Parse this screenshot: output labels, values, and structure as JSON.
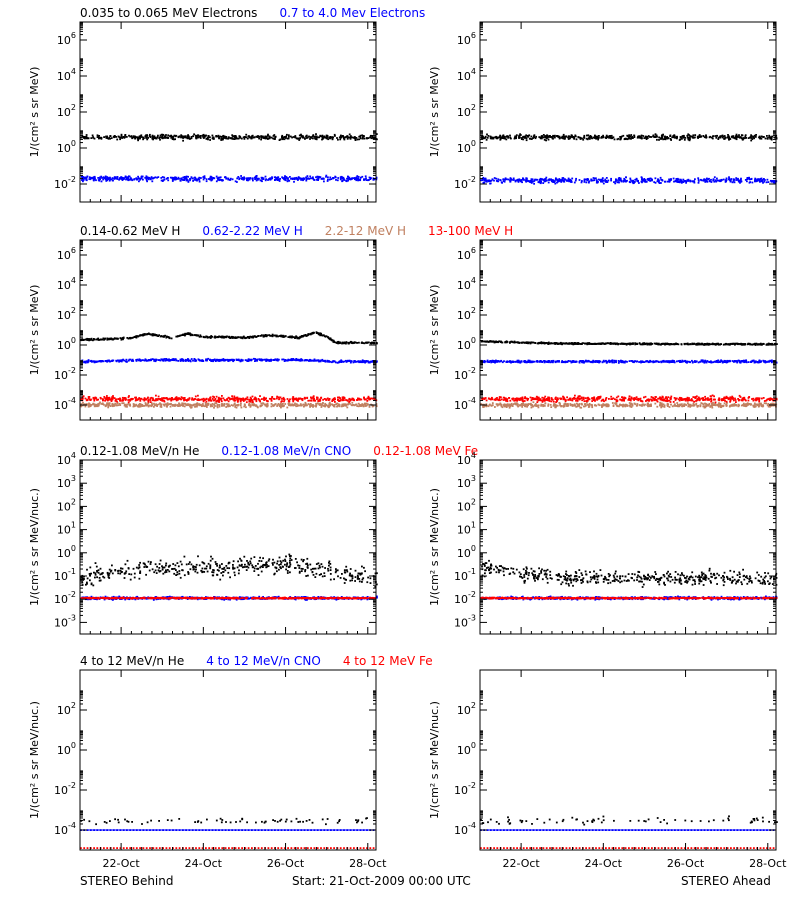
{
  "footer": {
    "left": "STEREO Behind",
    "center": "Start: 21-Oct-2009 00:00 UTC",
    "right": "STEREO Ahead"
  },
  "x_axis": {
    "range_days": [
      21.0,
      28.2
    ],
    "ticks": [
      22,
      24,
      26,
      28
    ],
    "tick_labels": [
      "22-Oct",
      "24-Oct",
      "26-Oct",
      "28-Oct"
    ]
  },
  "colors": {
    "black": "#000000",
    "blue": "#0000ff",
    "tan": "#c08060",
    "red": "#ff0000"
  },
  "rows": [
    {
      "id": "electrons",
      "legend": [
        {
          "text": "0.035 to 0.065 MeV Electrons",
          "color": "#000000"
        },
        {
          "text": "0.7 to 4.0 Mev Electrons",
          "color": "#0000ff"
        }
      ],
      "ylabel": "1/(cm² s sr MeV)",
      "log_range": [
        -3,
        7
      ],
      "ticks": [
        {
          "exp": -2,
          "text": "10",
          "sup": "-2"
        },
        {
          "exp": 0,
          "text": "10",
          "sup": "0"
        },
        {
          "exp": 2,
          "text": "10",
          "sup": "2"
        },
        {
          "exp": 4,
          "text": "10",
          "sup": "4"
        },
        {
          "exp": 6,
          "text": "10",
          "sup": "6"
        }
      ]
    },
    {
      "id": "protons",
      "legend": [
        {
          "text": "0.14-0.62 MeV H",
          "color": "#000000"
        },
        {
          "text": "0.62-2.22 MeV H",
          "color": "#0000ff"
        },
        {
          "text": "2.2-12 MeV H",
          "color": "#c08060"
        },
        {
          "text": "13-100 MeV H",
          "color": "#ff0000"
        }
      ],
      "ylabel": "1/(cm² s sr MeV)",
      "log_range": [
        -5,
        7
      ],
      "ticks": [
        {
          "exp": -4,
          "text": "10",
          "sup": "-4"
        },
        {
          "exp": -2,
          "text": "10",
          "sup": "-2"
        },
        {
          "exp": 0,
          "text": "10",
          "sup": "0"
        },
        {
          "exp": 2,
          "text": "10",
          "sup": "2"
        },
        {
          "exp": 4,
          "text": "10",
          "sup": "4"
        },
        {
          "exp": 6,
          "text": "10",
          "sup": "6"
        }
      ]
    },
    {
      "id": "ions_low",
      "legend": [
        {
          "text": "0.12-1.08 MeV/n He",
          "color": "#000000"
        },
        {
          "text": "0.12-1.08 MeV/n CNO",
          "color": "#0000ff"
        },
        {
          "text": "0.12-1.08 MeV Fe",
          "color": "#ff0000"
        }
      ],
      "ylabel": "1/(cm² s sr MeV/nuc.)",
      "log_range": [
        -3.5,
        4
      ],
      "ticks": [
        {
          "exp": -3,
          "text": "10",
          "sup": "-3"
        },
        {
          "exp": -2,
          "text": "10",
          "sup": "-2"
        },
        {
          "exp": -1,
          "text": "10",
          "sup": "-1"
        },
        {
          "exp": 0,
          "text": "10",
          "sup": "0"
        },
        {
          "exp": 1,
          "text": "10",
          "sup": "1"
        },
        {
          "exp": 2,
          "text": "10",
          "sup": "2"
        },
        {
          "exp": 3,
          "text": "10",
          "sup": "3"
        },
        {
          "exp": 4,
          "text": "10",
          "sup": "4"
        }
      ]
    },
    {
      "id": "ions_high",
      "legend": [
        {
          "text": "4 to 12 MeV/n He",
          "color": "#000000"
        },
        {
          "text": "4 to 12 MeV/n CNO",
          "color": "#0000ff"
        },
        {
          "text": "4 to 12 MeV Fe",
          "color": "#ff0000"
        }
      ],
      "ylabel": "1/(cm² s sr MeV/nuc.)",
      "log_range": [
        -5,
        4
      ],
      "ticks": [
        {
          "exp": -4,
          "text": "10",
          "sup": "-4"
        },
        {
          "exp": -2,
          "text": "10",
          "sup": "-2"
        },
        {
          "exp": 0,
          "text": "10",
          "sup": "0"
        },
        {
          "exp": 2,
          "text": "10",
          "sup": "2"
        }
      ]
    }
  ],
  "chart_data": [
    {
      "type": "scatter",
      "panel": "STEREO Behind - electrons",
      "y_scale": "log",
      "series": [
        {
          "name": "0.035 to 0.065 MeV Electrons",
          "color": "#000000",
          "base_log": 0.6,
          "noise": 0.12,
          "bumps": []
        },
        {
          "name": "0.7 to 4.0 Mev Electrons",
          "color": "#0000ff",
          "base_log": -1.7,
          "noise": 0.12,
          "bumps": []
        }
      ]
    },
    {
      "type": "scatter",
      "panel": "STEREO Ahead - electrons",
      "y_scale": "log",
      "series": [
        {
          "name": "0.035 to 0.065 MeV Electrons",
          "color": "#000000",
          "base_log": 0.6,
          "noise": 0.12,
          "bumps": []
        },
        {
          "name": "0.7 to 4.0 Mev Electrons",
          "color": "#0000ff",
          "base_log": -1.8,
          "noise": 0.12,
          "bumps": []
        }
      ]
    },
    {
      "type": "scatter",
      "panel": "STEREO Behind - protons",
      "y_scale": "log",
      "series": [
        {
          "name": "0.14-0.62 MeV H",
          "color": "#000000",
          "base_log": 0.15,
          "noise": 0.05,
          "bumps": [
            [
              21.0,
              0.2
            ],
            [
              22.2,
              0.3
            ],
            [
              22.6,
              0.6
            ],
            [
              23.2,
              0.35
            ],
            [
              23.6,
              0.6
            ],
            [
              24.0,
              0.4
            ],
            [
              25.0,
              0.35
            ],
            [
              25.6,
              0.5
            ],
            [
              26.3,
              0.35
            ],
            [
              26.7,
              0.7
            ],
            [
              27.0,
              0.4
            ],
            [
              27.2,
              0.0
            ],
            [
              28.2,
              0.0
            ]
          ]
        },
        {
          "name": "0.62-2.22 MeV H",
          "color": "#0000ff",
          "base_log": -1.1,
          "noise": 0.06,
          "bumps": [
            [
              21.0,
              0.0
            ],
            [
              22.5,
              0.1
            ],
            [
              24.0,
              0.1
            ],
            [
              26.5,
              0.1
            ],
            [
              27.2,
              0.0
            ],
            [
              28.2,
              0.0
            ]
          ]
        },
        {
          "name": "2.2-12 MeV H",
          "color": "#c08060",
          "base_log": -4.0,
          "noise": 0.12,
          "bumps": []
        },
        {
          "name": "13-100 MeV H",
          "color": "#ff0000",
          "base_log": -3.6,
          "noise": 0.15,
          "bumps": []
        }
      ]
    },
    {
      "type": "scatter",
      "panel": "STEREO Ahead - protons",
      "y_scale": "log",
      "series": [
        {
          "name": "0.14-0.62 MeV H",
          "color": "#000000",
          "base_log": 0.1,
          "noise": 0.04,
          "bumps": [
            [
              21.0,
              0.15
            ],
            [
              23.0,
              0.0
            ],
            [
              28.2,
              -0.05
            ]
          ]
        },
        {
          "name": "0.62-2.22 MeV H",
          "color": "#0000ff",
          "base_log": -1.1,
          "noise": 0.06,
          "bumps": []
        },
        {
          "name": "2.2-12 MeV H",
          "color": "#c08060",
          "base_log": -4.0,
          "noise": 0.12,
          "bumps": []
        },
        {
          "name": "13-100 MeV H",
          "color": "#ff0000",
          "base_log": -3.6,
          "noise": 0.15,
          "bumps": []
        }
      ]
    },
    {
      "type": "scatter",
      "panel": "STEREO Behind - 0.12-1.08 MeV/n ions",
      "y_scale": "log",
      "series": [
        {
          "name": "0.12-1.08 MeV/n He",
          "color": "#000000",
          "base_log": -1.0,
          "noise": 0.35,
          "bumps": [
            [
              21.0,
              0.0
            ],
            [
              22.5,
              0.3
            ],
            [
              24.0,
              0.4
            ],
            [
              26.0,
              0.5
            ],
            [
              27.0,
              0.3
            ],
            [
              27.4,
              0.0
            ],
            [
              28.2,
              0.0
            ]
          ]
        },
        {
          "name": "0.12-1.08 MeV/n CNO",
          "color": "#0000ff",
          "base_log": -1.95,
          "noise": 0.05,
          "bumps": []
        },
        {
          "name": "0.12-1.08 MeV Fe",
          "color": "#ff0000",
          "base_log": -1.95,
          "noise": 0.02,
          "bumps": []
        }
      ]
    },
    {
      "type": "scatter",
      "panel": "STEREO Ahead - 0.12-1.08 MeV/n ions",
      "y_scale": "log",
      "series": [
        {
          "name": "0.12-1.08 MeV/n He",
          "color": "#000000",
          "base_log": -1.1,
          "noise": 0.25,
          "bumps": [
            [
              21.0,
              0.5
            ],
            [
              22.0,
              0.2
            ],
            [
              23.0,
              0.0
            ],
            [
              28.2,
              0.0
            ]
          ]
        },
        {
          "name": "0.12-1.08 MeV/n CNO",
          "color": "#0000ff",
          "base_log": -1.95,
          "noise": 0.05,
          "bumps": []
        },
        {
          "name": "0.12-1.08 MeV Fe",
          "color": "#ff0000",
          "base_log": -1.95,
          "noise": 0.02,
          "bumps": []
        }
      ]
    },
    {
      "type": "scatter",
      "panel": "STEREO Behind - 4 to 12 MeV/n ions",
      "y_scale": "log",
      "series": [
        {
          "name": "4 to 12 MeV/n He",
          "color": "#000000",
          "base_log": -3.55,
          "noise": 0.15,
          "bumps": []
        },
        {
          "name": "4 to 12 MeV/n CNO",
          "color": "#0000ff",
          "base_log": -4.0,
          "noise": 0.0,
          "bumps": []
        },
        {
          "name": "4 to 12 MeV Fe",
          "color": "#ff0000",
          "base_log": -4.9,
          "noise": 0.0,
          "bumps": []
        }
      ]
    },
    {
      "type": "scatter",
      "panel": "STEREO Ahead - 4 to 12 MeV/n ions",
      "y_scale": "log",
      "series": [
        {
          "name": "4 to 12 MeV/n He",
          "color": "#000000",
          "base_log": -3.55,
          "noise": 0.15,
          "bumps": []
        },
        {
          "name": "4 to 12 MeV/n CNO",
          "color": "#0000ff",
          "base_log": -4.0,
          "noise": 0.0,
          "bumps": []
        },
        {
          "name": "4 to 12 MeV Fe",
          "color": "#ff0000",
          "base_log": -4.9,
          "noise": 0.0,
          "bumps": []
        }
      ]
    }
  ]
}
